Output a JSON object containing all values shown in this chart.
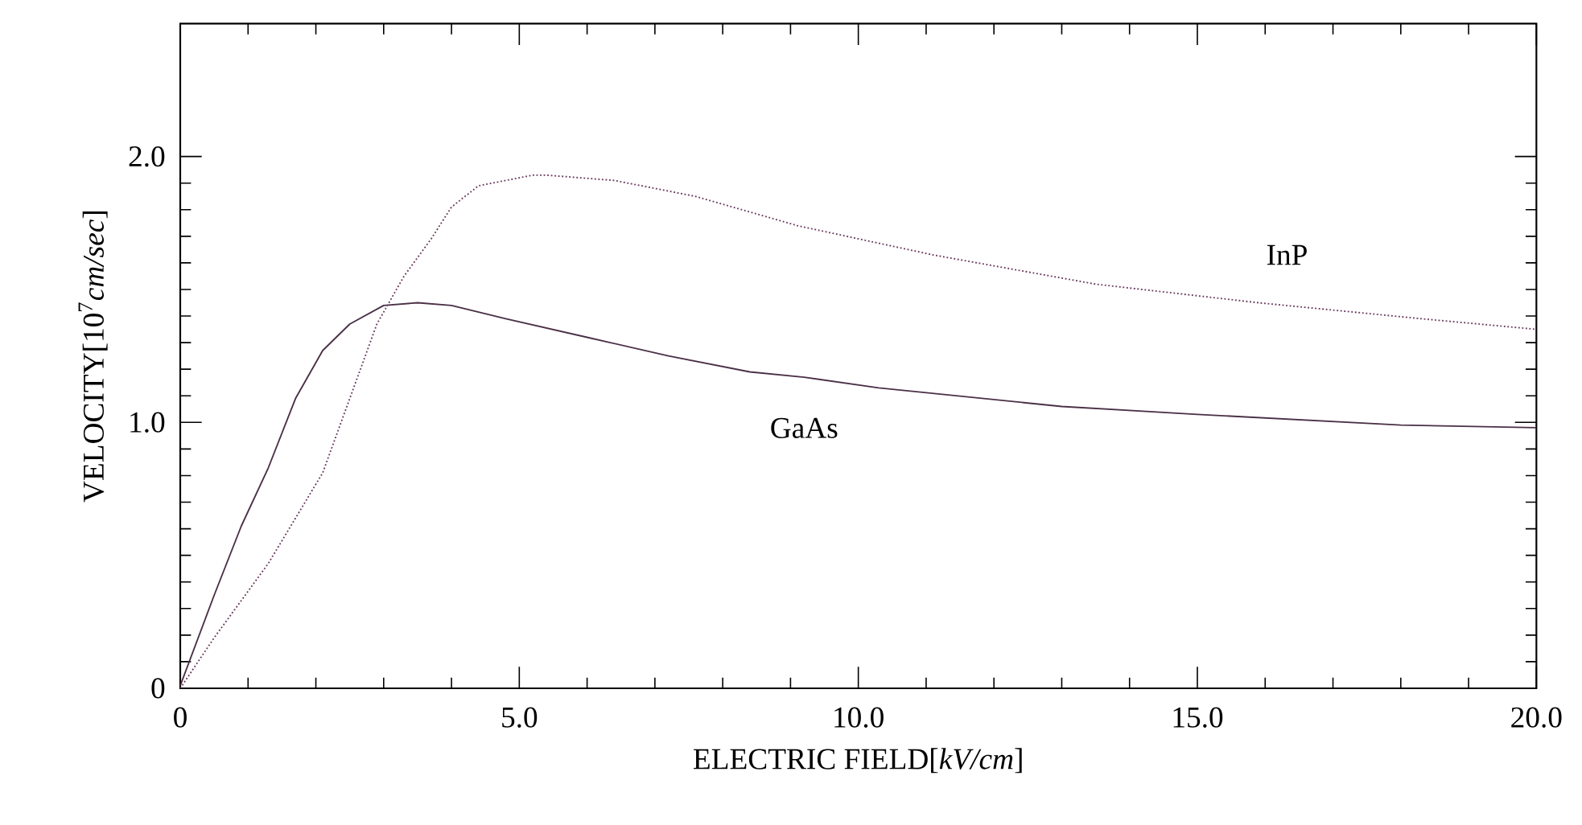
{
  "chart_data": {
    "type": "line",
    "xlabel": "ELECTRIC FIELD[*kV/cm*]",
    "ylabel": "VELOCITY[10$^{7}$*cm/sec*]",
    "xlim": [
      0,
      20
    ],
    "ylim": [
      0,
      2.5
    ],
    "xticks": [
      0,
      {
        "value": 5,
        "label": "5.0"
      },
      {
        "value": 10,
        "label": "10.0"
      },
      {
        "value": 15,
        "label": "15.0"
      },
      {
        "value": 20,
        "label": "20.0"
      }
    ],
    "yticks": [
      0,
      {
        "value": 1,
        "label": "1.0"
      },
      {
        "value": 2,
        "label": "2.0"
      }
    ],
    "marker": "none",
    "series": [
      {
        "name": "GaAs",
        "color": "#4a3046",
        "line_style": "solid",
        "x": [
          0,
          0.5,
          0.9,
          1.3,
          1.7,
          2.1,
          2.5,
          3.0,
          3.5,
          4.0,
          4.8,
          6.0,
          7.2,
          8.4,
          9.2,
          10.3,
          13.0,
          15.0,
          18.0,
          20.0
        ],
        "values": [
          0.01,
          0.35,
          0.61,
          0.83,
          1.09,
          1.27,
          1.37,
          1.44,
          1.45,
          1.44,
          1.39,
          1.32,
          1.25,
          1.19,
          1.17,
          1.13,
          1.06,
          1.03,
          0.99,
          0.98
        ]
      },
      {
        "name": "InP",
        "color": "#6a3a5e",
        "line_style": "dotted",
        "x": [
          0,
          0.5,
          1.3,
          2.1,
          2.9,
          3.3,
          3.7,
          4.0,
          4.4,
          5.2,
          5.4,
          6.4,
          7.6,
          9.1,
          11.1,
          13.5,
          15.9,
          18.3,
          20.0
        ],
        "values": [
          0.0,
          0.19,
          0.47,
          0.81,
          1.37,
          1.55,
          1.69,
          1.81,
          1.89,
          1.93,
          1.93,
          1.91,
          1.85,
          1.74,
          1.63,
          1.52,
          1.45,
          1.39,
          1.35
        ]
      }
    ]
  }
}
